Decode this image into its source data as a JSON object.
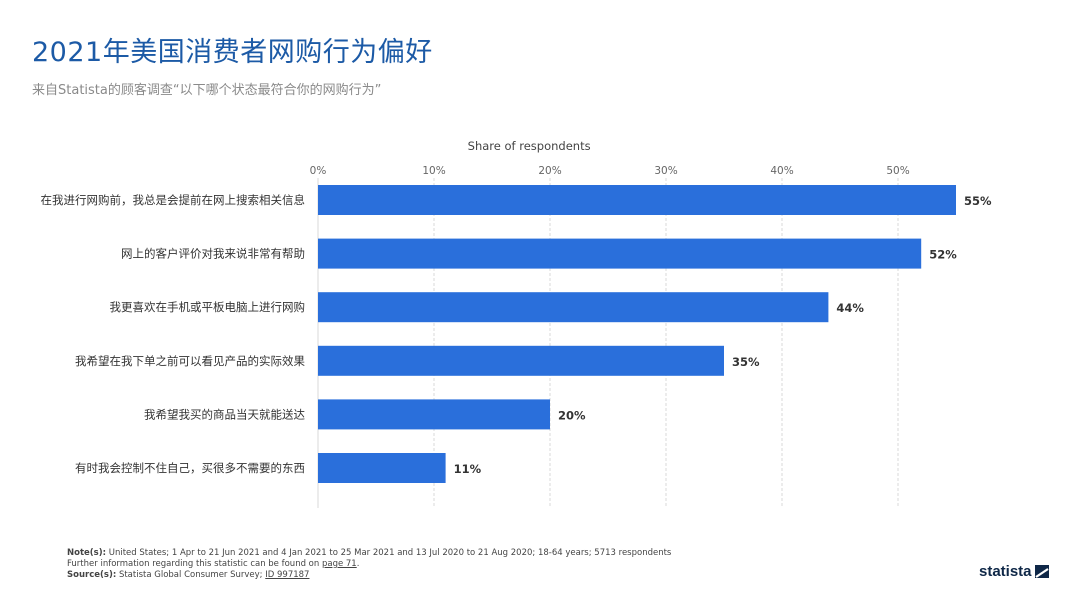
{
  "header": {
    "title": "2021年美国消费者网购行为偏好",
    "subtitle": "来自Statista的顾客调查“以下哪个状态最符合你的网购行为”"
  },
  "chart_data": {
    "type": "bar",
    "orientation": "horizontal",
    "title": "2021年美国消费者网购行为偏好",
    "subtitle": "来自Statista的顾客调查“以下哪个状态最符合你的网购行为”",
    "xlabel": "Share of respondents",
    "ylabel": "",
    "xlim": [
      0,
      60
    ],
    "x_ticks": [
      0,
      10,
      20,
      30,
      40,
      50
    ],
    "x_tick_labels": [
      "0%",
      "10%",
      "20%",
      "30%",
      "40%",
      "50%"
    ],
    "grid": true,
    "axis_position": "top",
    "categories": [
      "在我进行网购前，我总是会提前在网上搜索相关信息",
      "网上的客户评价对我来说非常有帮助",
      "我更喜欢在手机或平板电脑上进行网购",
      "我希望在我下单之前可以看见产品的实际效果",
      "我希望我买的商品当天就能送达",
      "有时我会控制不住自己，买很多不需要的东西"
    ],
    "values": [
      55,
      52,
      44,
      35,
      20,
      11
    ],
    "value_labels": [
      "55%",
      "52%",
      "44%",
      "35%",
      "20%",
      "11%"
    ],
    "bar_color": "#2a6fdb"
  },
  "footer": {
    "note_label": "Note(s):",
    "note_text": "United States; 1 Apr to 21 Jun 2021 and 4 Jan 2021 to 25 Mar 2021 and 13 Jul 2020 to 21 Aug 2020; 18-64 years; 5713 respondents",
    "further_text": "Further information regarding this statistic can be found on",
    "further_link": "page 71",
    "further_end": ".",
    "source_label": "Source(s):",
    "source_text": "Statista Global Consumer Survey;",
    "source_id": "ID 997187"
  },
  "logo": {
    "text": "statista",
    "icon": "statista-logo-icon"
  }
}
